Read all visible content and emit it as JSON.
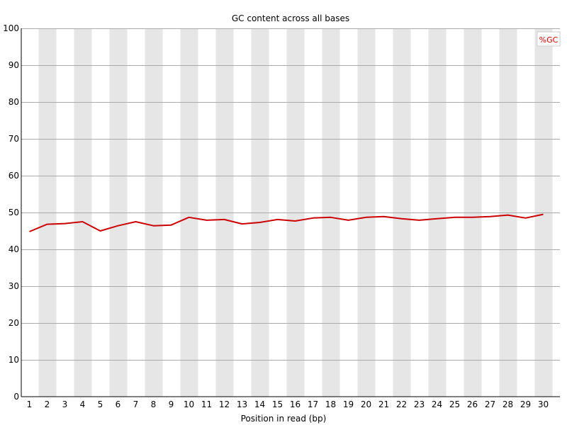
{
  "chart_data": {
    "type": "line",
    "title": "GC content across all bases",
    "xlabel": "Position in read (bp)",
    "ylabel": "",
    "ylim": [
      0,
      100
    ],
    "y_ticks": [
      0,
      10,
      20,
      30,
      40,
      50,
      60,
      70,
      80,
      90,
      100
    ],
    "categories": [
      "1",
      "2",
      "3",
      "4",
      "5",
      "6",
      "7",
      "8",
      "9",
      "10",
      "11",
      "12",
      "13",
      "14",
      "15",
      "16",
      "17",
      "18",
      "19",
      "20",
      "21",
      "22",
      "23",
      "24",
      "25",
      "26",
      "27",
      "28",
      "29",
      "30"
    ],
    "series": [
      {
        "name": "%GC",
        "color": "#cc0000",
        "values": [
          44.8,
          46.8,
          47.0,
          47.5,
          45.0,
          46.4,
          47.5,
          46.4,
          46.6,
          48.7,
          47.9,
          48.1,
          46.9,
          47.3,
          48.1,
          47.7,
          48.5,
          48.7,
          47.9,
          48.7,
          48.9,
          48.3,
          47.9,
          48.3,
          48.7,
          48.7,
          48.9,
          49.3,
          48.5,
          49.5
        ]
      }
    ],
    "grid": true,
    "band_color": "#e6e6e6",
    "legend_position": "top-right"
  }
}
